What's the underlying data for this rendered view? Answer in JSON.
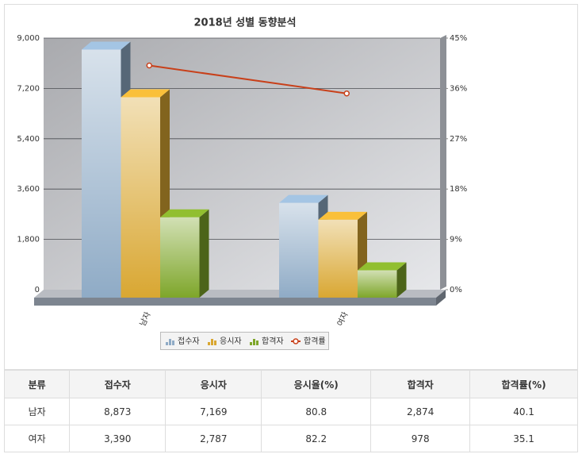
{
  "chart_data": {
    "type": "bar",
    "title": "2018년 성별 동향분석",
    "categories": [
      "남자",
      "여자"
    ],
    "series": [
      {
        "name": "접수자",
        "color": "#8fabc6",
        "values": [
          8873,
          3390
        ]
      },
      {
        "name": "응시자",
        "color": "#d9a732",
        "values": [
          7169,
          2787
        ]
      },
      {
        "name": "합격자",
        "color": "#7ea62a",
        "values": [
          2874,
          978
        ]
      },
      {
        "name": "합격률",
        "color": "#c8401a",
        "values": [
          40.1,
          35.1
        ],
        "axis": "y2",
        "type": "line"
      }
    ],
    "ylim": [
      0,
      9000
    ],
    "yticks": [
      0,
      {
        "value": 1800,
        "label": "1,800"
      },
      {
        "value": 3600,
        "label": "3,600"
      },
      {
        "value": 5400,
        "label": "5,400"
      },
      {
        "value": 7200,
        "label": "7,200"
      },
      {
        "value": 9000,
        "label": "9,000"
      }
    ],
    "y2lim": [
      0,
      45
    ],
    "y2ticks": [
      {
        "value": 0,
        "label": "0%"
      },
      {
        "value": 9,
        "label": "9%"
      },
      {
        "value": 18,
        "label": "18%"
      },
      {
        "value": 27,
        "label": "27%"
      },
      {
        "value": 36,
        "label": "36%"
      },
      {
        "value": 45,
        "label": "45%"
      }
    ],
    "grid": true,
    "legend": "bottom"
  },
  "table": {
    "headers": [
      "분류",
      "접수자",
      "응시자",
      "응시율(%)",
      "합격자",
      "합격률(%)"
    ],
    "rows": [
      [
        "남자",
        "8,873",
        "7,169",
        "80.8",
        "2,874",
        "40.1"
      ],
      [
        "여자",
        "3,390",
        "2,787",
        "82.2",
        "978",
        "35.1"
      ]
    ]
  }
}
